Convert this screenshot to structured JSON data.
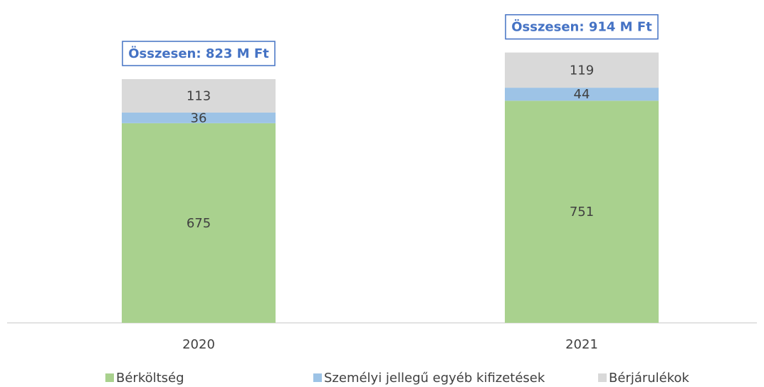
{
  "chart_data": {
    "type": "bar",
    "stacked": true,
    "categories": [
      "2020",
      "2021"
    ],
    "series": [
      {
        "name": "Bérköltség",
        "color": "#a9d18e",
        "values": [
          675,
          751
        ]
      },
      {
        "name": "Személyi jellegű egyéb kifizetések",
        "color": "#9dc3e6",
        "values": [
          36,
          44
        ]
      },
      {
        "name": "Bérjárulékok",
        "color": "#d9d9d9",
        "values": [
          113,
          119
        ]
      }
    ],
    "annotations": [
      "Összesen: 823 M Ft",
      "Összesen: 914 M Ft"
    ],
    "ylim": [
      0,
      1000
    ],
    "legend": "bottom"
  }
}
